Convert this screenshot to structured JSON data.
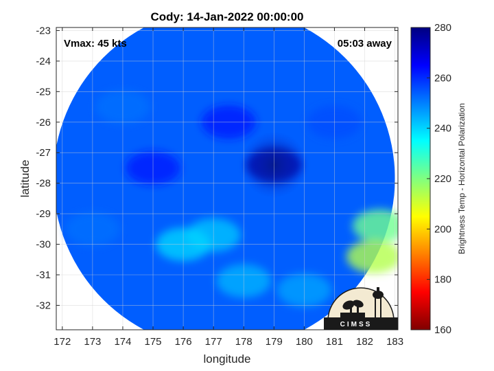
{
  "chart_data": {
    "type": "heatmap",
    "title": "Cody: 14-Jan-2022 00:00:00",
    "annotations": {
      "top_left": "Vmax: 45 kts",
      "top_right": "05:03 away"
    },
    "xlabel": "longitude",
    "ylabel": "latitude",
    "xlim": [
      171.8,
      183.1
    ],
    "ylim": [
      -32.8,
      -22.9
    ],
    "xticks": [
      172,
      173,
      174,
      175,
      176,
      177,
      178,
      179,
      180,
      181,
      182,
      183
    ],
    "yticks": [
      -23,
      -24,
      -25,
      -26,
      -27,
      -28,
      -29,
      -30,
      -31,
      -32
    ],
    "grid": true,
    "colorbar": {
      "label": "Brightness Temp - Horizontal Polarization",
      "range": [
        160,
        280
      ],
      "ticks": [
        280,
        260,
        240,
        220,
        200,
        180,
        160
      ],
      "colormap": "jet",
      "colors": [
        "#800000",
        "#ff0000",
        "#ff8000",
        "#ffff00",
        "#80ff80",
        "#00ffff",
        "#0080ff",
        "#0000ff",
        "#000080"
      ]
    },
    "field": {
      "swath_center": [
        177.35,
        -27.85
      ],
      "swath_radius_deg": 5.65,
      "eye_center": [
        179.0,
        -27.4
      ],
      "samples": [
        {
          "lon": 179.0,
          "lat": -27.4,
          "tb": 276
        },
        {
          "lon": 177.5,
          "lat": -26.0,
          "tb": 262
        },
        {
          "lon": 175.0,
          "lat": -27.5,
          "tb": 262
        },
        {
          "lon": 174.0,
          "lat": -25.5,
          "tb": 252
        },
        {
          "lon": 181.0,
          "lat": -26.0,
          "tb": 256
        },
        {
          "lon": 177.0,
          "lat": -29.7,
          "tb": 242
        },
        {
          "lon": 176.0,
          "lat": -30.0,
          "tb": 240
        },
        {
          "lon": 178.0,
          "lat": -31.2,
          "tb": 244
        },
        {
          "lon": 182.5,
          "lat": -29.4,
          "tb": 222
        },
        {
          "lon": 182.3,
          "lat": -30.4,
          "tb": 214
        },
        {
          "lon": 180.0,
          "lat": -31.5,
          "tb": 246
        },
        {
          "lon": 173.0,
          "lat": -29.5,
          "tb": 252
        }
      ]
    }
  },
  "logo": {
    "text": "CIMSS"
  }
}
